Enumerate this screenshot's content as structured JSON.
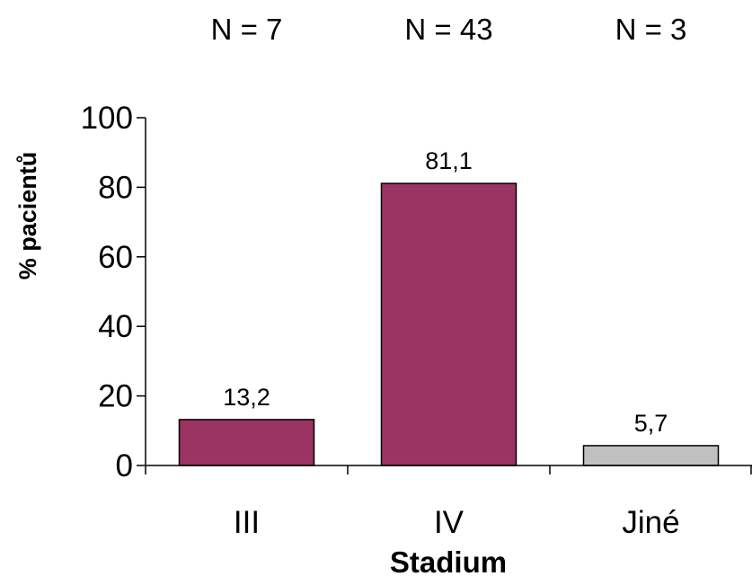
{
  "chart_data": {
    "type": "bar",
    "categories": [
      "III",
      "IV",
      "Jiné"
    ],
    "values": [
      13.2,
      81.1,
      5.7
    ],
    "value_labels": [
      "13,2",
      "81,1",
      "5,7"
    ],
    "counts": [
      "N = 7",
      "N = 43",
      "N = 3"
    ],
    "bar_colors": [
      "#9B3462",
      "#9B3462",
      "#C0C0C0"
    ],
    "title": "",
    "xlabel": "Stadium",
    "ylabel": "% pacientů",
    "ylim": [
      0,
      100
    ],
    "yticks": [
      0,
      20,
      40,
      60,
      80,
      100
    ],
    "grid": false,
    "legend": "none"
  }
}
